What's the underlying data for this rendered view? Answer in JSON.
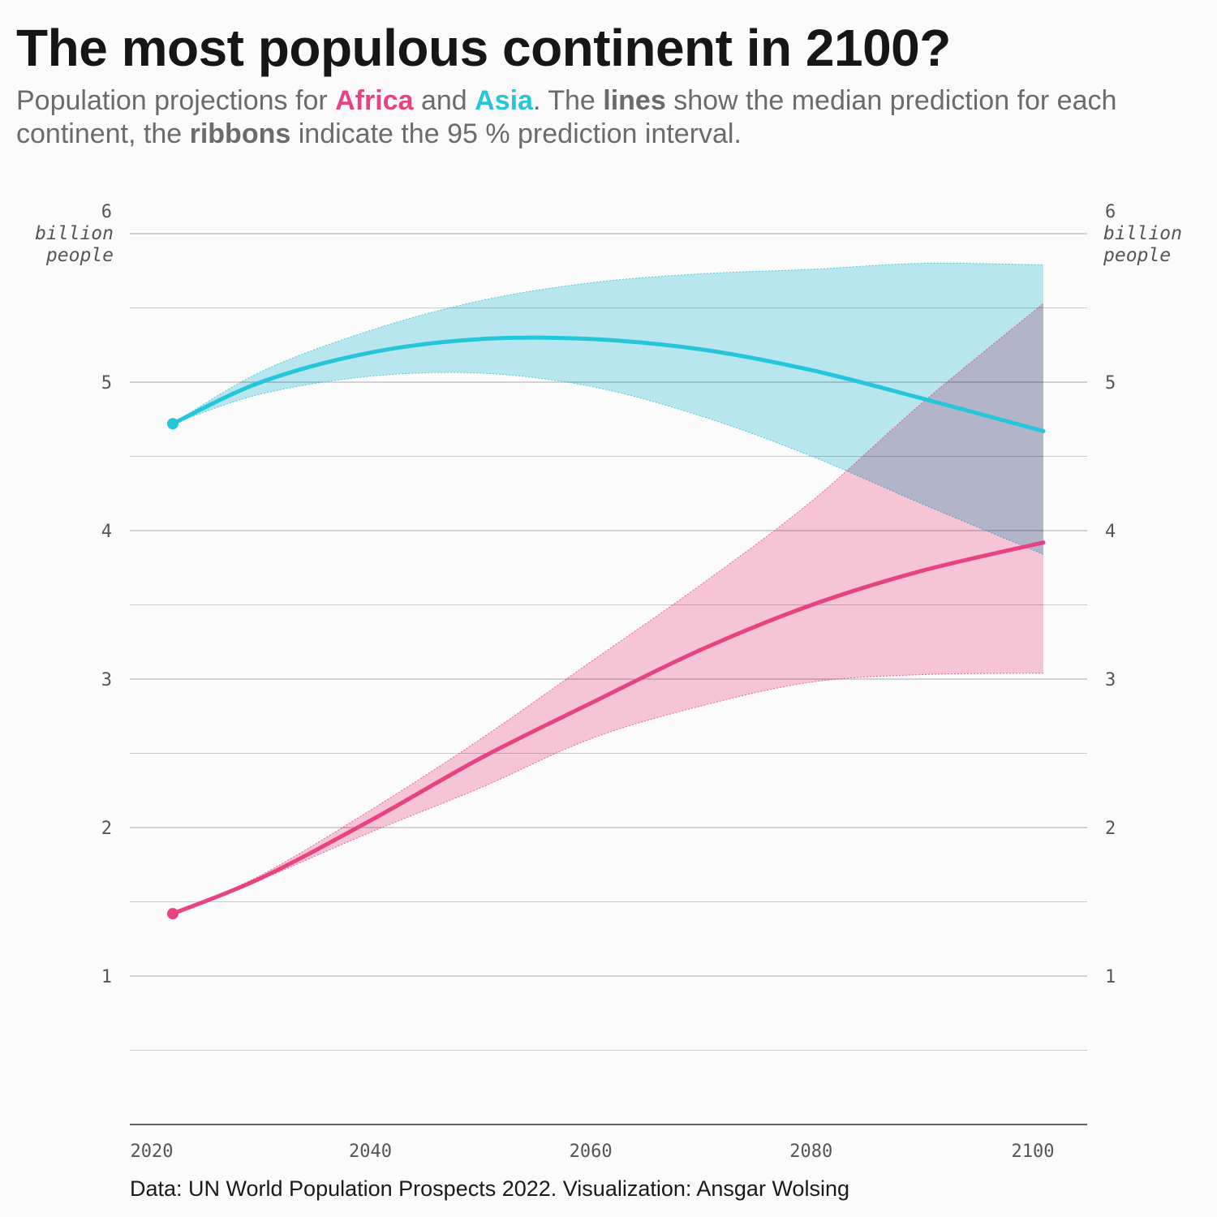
{
  "header": {
    "title": "The most populous continent in 2100?",
    "subtitle_parts": {
      "p1": "Population projections for ",
      "africa": "Africa",
      "p2": " and ",
      "asia": "Asia",
      "p3": ". The ",
      "lines": "lines",
      "p4": " show the median prediction for each continent, the ",
      "ribbons": "ribbons",
      "p5": " indicate the 95 % prediction interval."
    }
  },
  "caption": "Data: UN World Population Prospects 2022. Visualization: Ansgar Wolsing",
  "axis_unit": {
    "line1": "billion",
    "line2": "people"
  },
  "colors": {
    "africa": "#e84381",
    "africa_ribbon": "#f7b8ce",
    "asia": "#26c6da",
    "asia_ribbon": "#b2e8f0",
    "grid": "#b9b9c0",
    "background": "#fbfbfc"
  },
  "chart_data": {
    "type": "line",
    "xlim": [
      2020,
      2105
    ],
    "ylim": [
      0,
      6
    ],
    "x_ticks": [
      2020,
      2040,
      2060,
      2080,
      2100
    ],
    "y_ticks": [
      1,
      2,
      3,
      4,
      5,
      6
    ],
    "y_minor_ticks": [
      0.5,
      1.5,
      2.5,
      3.5,
      4.5,
      5.5
    ],
    "x": [
      2022,
      2030,
      2040,
      2050,
      2060,
      2070,
      2080,
      2090,
      2101
    ],
    "series": [
      {
        "name": "Asia",
        "color": "#26c6da",
        "median": [
          4.72,
          5.0,
          5.2,
          5.29,
          5.29,
          5.22,
          5.08,
          4.89,
          4.67
        ],
        "lower": [
          4.72,
          4.92,
          5.04,
          5.06,
          4.97,
          4.77,
          4.5,
          4.18,
          3.84
        ],
        "upper": [
          4.72,
          5.07,
          5.35,
          5.55,
          5.67,
          5.73,
          5.76,
          5.8,
          5.79
        ]
      },
      {
        "name": "Africa",
        "color": "#e84381",
        "median": [
          1.42,
          1.66,
          2.05,
          2.47,
          2.84,
          3.2,
          3.5,
          3.73,
          3.92
        ],
        "lower": [
          1.42,
          1.65,
          1.97,
          2.27,
          2.6,
          2.82,
          2.98,
          3.03,
          3.04
        ],
        "upper": [
          1.42,
          1.68,
          2.12,
          2.6,
          3.12,
          3.64,
          4.2,
          4.86,
          5.53
        ]
      }
    ]
  }
}
